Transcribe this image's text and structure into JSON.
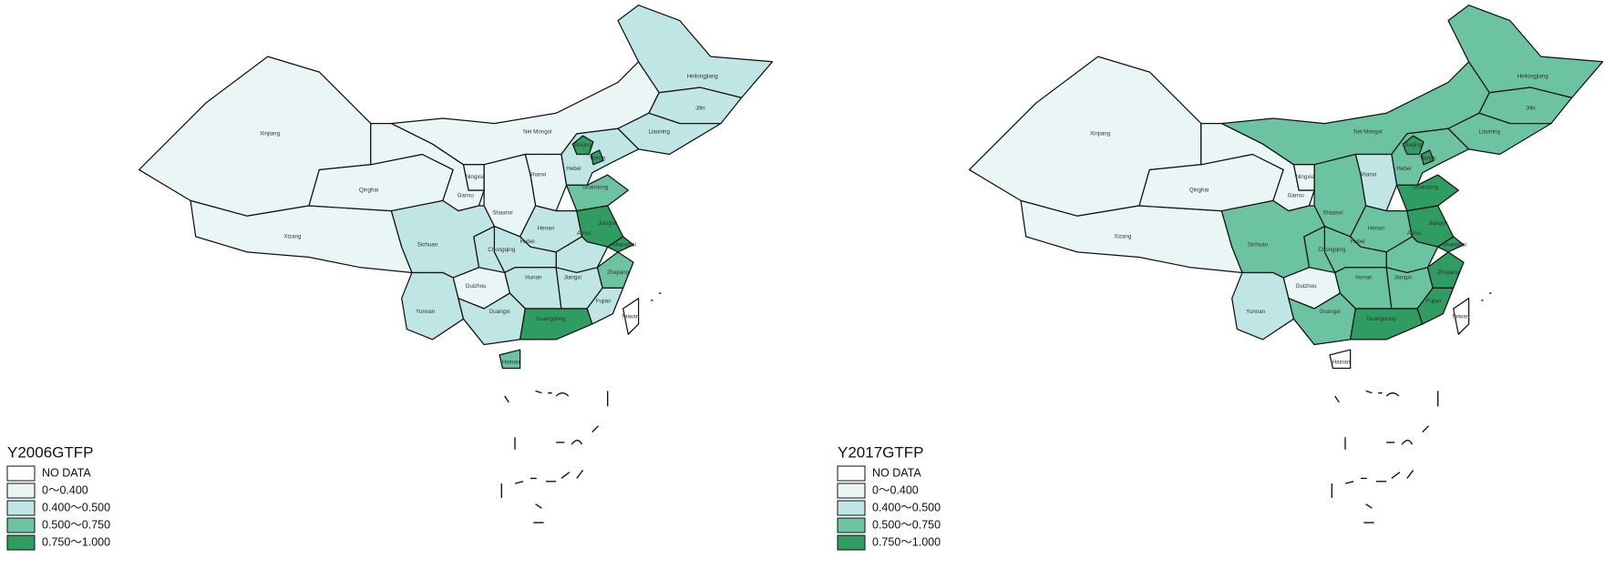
{
  "legend_items": [
    {
      "label": "NO DATA",
      "color": "#ffffff"
    },
    {
      "label": "0～0.400",
      "color": "#eaf6f6"
    },
    {
      "label": "0.400～0.500",
      "color": "#bfe5e4"
    },
    {
      "label": "0.500～0.750",
      "color": "#6cc3a1"
    },
    {
      "label": "0.750～1.000",
      "color": "#2f9d62"
    }
  ],
  "provinces": [
    "Xinjiang",
    "Xizang",
    "Qinghai",
    "Gansu",
    "Nei Mongol",
    "Heilongjiang",
    "Jilin",
    "Liaoning",
    "Hebei",
    "Beijing",
    "Tianjin",
    "Shanxi",
    "Shaanxi",
    "Ningxia",
    "Shandong",
    "Henan",
    "Jiangsu",
    "Anhui",
    "Shanghai",
    "Zhejiang",
    "Hubei",
    "Chongqing",
    "Sichuan",
    "Hunan",
    "Jiangxi",
    "Fujian",
    "Guizhou",
    "Yunnan",
    "Guangxi",
    "Guangdong",
    "Hainan",
    "Taiwan"
  ],
  "maps": [
    {
      "title": "Y2006GTFP",
      "classes": [
        1,
        1,
        1,
        1,
        1,
        2,
        2,
        2,
        2,
        4,
        4,
        1,
        1,
        1,
        3,
        2,
        4,
        2,
        4,
        3,
        2,
        2,
        2,
        2,
        2,
        2,
        1,
        2,
        2,
        4,
        3,
        0
      ]
    },
    {
      "title": "Y2017GTFP",
      "classes": [
        1,
        1,
        1,
        1,
        3,
        3,
        3,
        3,
        3,
        4,
        4,
        2,
        3,
        1,
        4,
        3,
        4,
        3,
        4,
        4,
        3,
        3,
        3,
        3,
        3,
        4,
        1,
        2,
        3,
        4,
        0,
        0
      ]
    }
  ]
}
